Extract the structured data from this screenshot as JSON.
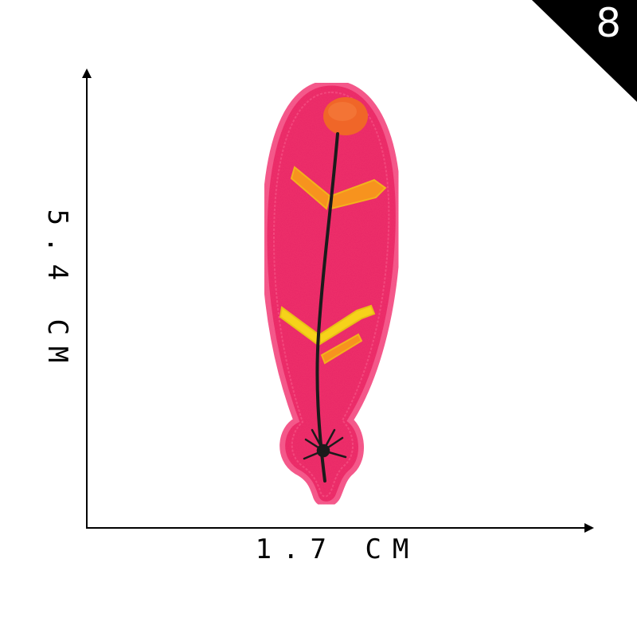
{
  "dimensions": {
    "height_label": "5.4 CM",
    "width_label": "1.7 CM"
  },
  "badge": {
    "number": "8"
  },
  "colors": {
    "patch_fill": "#ee2d6a",
    "patch_border": "#f75b8f",
    "tip": "#f06628",
    "stitch_orange": "#f7931e",
    "stitch_yellow": "#f6d21a",
    "quill": "#1b1b1b",
    "badge": "#000000"
  },
  "image": {
    "subject": "feather-patch"
  }
}
